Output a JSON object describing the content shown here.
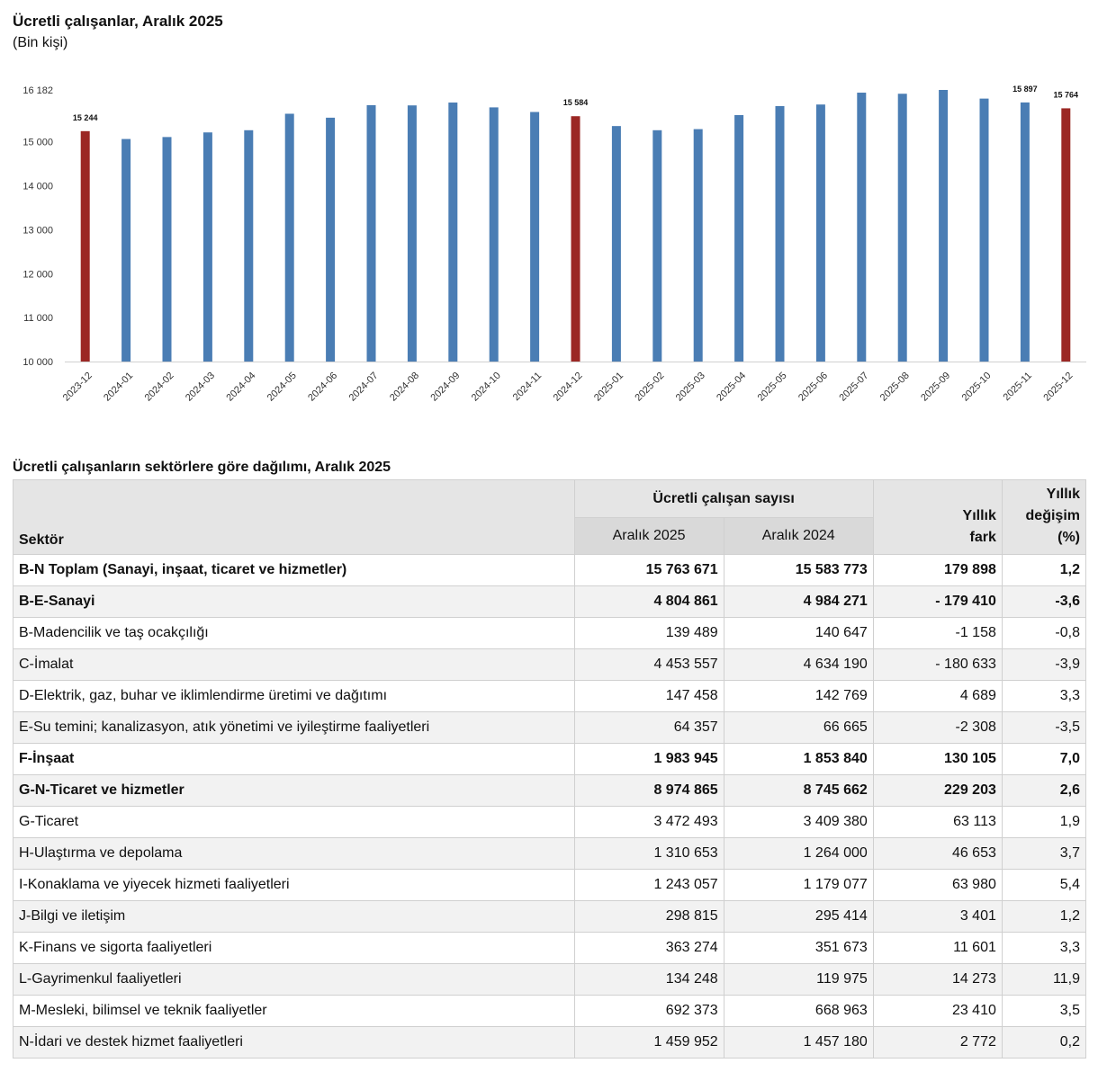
{
  "chart_title": "Ücretli çalışanlar, Aralık 2025",
  "chart_subtitle": "(Bin kişi)",
  "chart_data": {
    "type": "bar",
    "title": "Ücretli çalışanlar, Aralık 2025",
    "ylabel": "(Bin kişi)",
    "categories": [
      "2023-12",
      "2024-01",
      "2024-02",
      "2024-03",
      "2024-04",
      "2024-05",
      "2024-06",
      "2024-07",
      "2024-08",
      "2024-09",
      "2024-10",
      "2024-11",
      "2024-12",
      "2025-01",
      "2025-02",
      "2025-03",
      "2025-04",
      "2025-05",
      "2025-06",
      "2025-07",
      "2025-08",
      "2025-09",
      "2025-10",
      "2025-11",
      "2025-12"
    ],
    "values": [
      15244,
      15065,
      15110,
      15215,
      15265,
      15640,
      15550,
      15835,
      15830,
      15895,
      15785,
      15680,
      15584,
      15360,
      15265,
      15290,
      15610,
      15815,
      15850,
      16120,
      16095,
      16182,
      15985,
      15897,
      15764
    ],
    "highlight": [
      true,
      false,
      false,
      false,
      false,
      false,
      false,
      false,
      false,
      false,
      false,
      false,
      true,
      false,
      false,
      false,
      false,
      false,
      false,
      false,
      false,
      false,
      false,
      false,
      true
    ],
    "data_labels": [
      {
        "index": 0,
        "text": "15 244"
      },
      {
        "index": 12,
        "text": "15 584"
      },
      {
        "index": 23,
        "text": "15 897"
      },
      {
        "index": 24,
        "text": "15 764"
      }
    ],
    "ylim": [
      10000,
      16182
    ],
    "yticks": [
      {
        "value": 16182,
        "label": "16 182"
      },
      {
        "value": 15000,
        "label": "15 000"
      },
      {
        "value": 14000,
        "label": "14 000"
      },
      {
        "value": 13000,
        "label": "13 000"
      },
      {
        "value": 12000,
        "label": "12 000"
      },
      {
        "value": 11000,
        "label": "11 000"
      },
      {
        "value": 10000,
        "label": "10 000"
      }
    ],
    "colors": {
      "default": "#4a7db4",
      "highlight": "#9b2724"
    }
  },
  "table": {
    "title": "Ücretli çalışanların sektörlere göre dağılımı, Aralık 2025",
    "header": {
      "sector": "Sektör",
      "group": "Ücretli çalışan sayısı",
      "col1": "Aralık 2025",
      "col2": "Aralık 2024",
      "diff_line1": "Yıllık",
      "diff_line2": "fark",
      "change_line1": "Yıllık",
      "change_line2": "değişim",
      "change_line3": "(%)"
    },
    "rows": [
      {
        "sector": "B-N Toplam (Sanayi, inşaat, ticaret ve hizmetler)",
        "a2025": "15 763 671",
        "a2024": "15 583 773",
        "diff": "179 898",
        "change": "1,2",
        "bold": true
      },
      {
        "sector": "B-E-Sanayi",
        "a2025": "4 804 861",
        "a2024": "4 984 271",
        "diff": "- 179 410",
        "change": "-3,6",
        "bold": true
      },
      {
        "sector": "B-Madencilik ve taş ocakçılığı",
        "a2025": "139 489",
        "a2024": "140 647",
        "diff": "-1 158",
        "change": "-0,8",
        "bold": false
      },
      {
        "sector": "C-İmalat",
        "a2025": "4 453 557",
        "a2024": "4 634 190",
        "diff": "- 180 633",
        "change": "-3,9",
        "bold": false
      },
      {
        "sector": "D-Elektrik, gaz, buhar ve iklimlendirme üretimi ve dağıtımı",
        "a2025": "147 458",
        "a2024": "142 769",
        "diff": "4 689",
        "change": "3,3",
        "bold": false
      },
      {
        "sector": "E-Su temini; kanalizasyon, atık yönetimi ve iyileştirme faaliyetleri",
        "a2025": "64 357",
        "a2024": "66 665",
        "diff": "-2 308",
        "change": "-3,5",
        "bold": false
      },
      {
        "sector": "F-İnşaat",
        "a2025": "1 983 945",
        "a2024": "1 853 840",
        "diff": "130 105",
        "change": "7,0",
        "bold": true
      },
      {
        "sector": "G-N-Ticaret ve hizmetler",
        "a2025": "8 974 865",
        "a2024": "8 745 662",
        "diff": "229 203",
        "change": "2,6",
        "bold": true
      },
      {
        "sector": "G-Ticaret",
        "a2025": "3 472 493",
        "a2024": "3 409 380",
        "diff": "63 113",
        "change": "1,9",
        "bold": false
      },
      {
        "sector": "H-Ulaştırma ve depolama",
        "a2025": "1 310 653",
        "a2024": "1 264 000",
        "diff": "46 653",
        "change": "3,7",
        "bold": false
      },
      {
        "sector": "I-Konaklama ve yiyecek hizmeti faaliyetleri",
        "a2025": "1 243 057",
        "a2024": "1 179 077",
        "diff": "63 980",
        "change": "5,4",
        "bold": false
      },
      {
        "sector": "J-Bilgi ve iletişim",
        "a2025": "298 815",
        "a2024": "295 414",
        "diff": "3 401",
        "change": "1,2",
        "bold": false
      },
      {
        "sector": "K-Finans ve sigorta faaliyetleri",
        "a2025": "363 274",
        "a2024": "351 673",
        "diff": "11 601",
        "change": "3,3",
        "bold": false
      },
      {
        "sector": "L-Gayrimenkul faaliyetleri",
        "a2025": "134 248",
        "a2024": "119 975",
        "diff": "14 273",
        "change": "11,9",
        "bold": false
      },
      {
        "sector": "M-Mesleki, bilimsel ve teknik faaliyetler",
        "a2025": "692 373",
        "a2024": "668 963",
        "diff": "23 410",
        "change": "3,5",
        "bold": false
      },
      {
        "sector": "N-İdari ve destek hizmet faaliyetleri",
        "a2025": "1 459 952",
        "a2024": "1 457 180",
        "diff": "2 772",
        "change": "0,2",
        "bold": false
      }
    ]
  }
}
